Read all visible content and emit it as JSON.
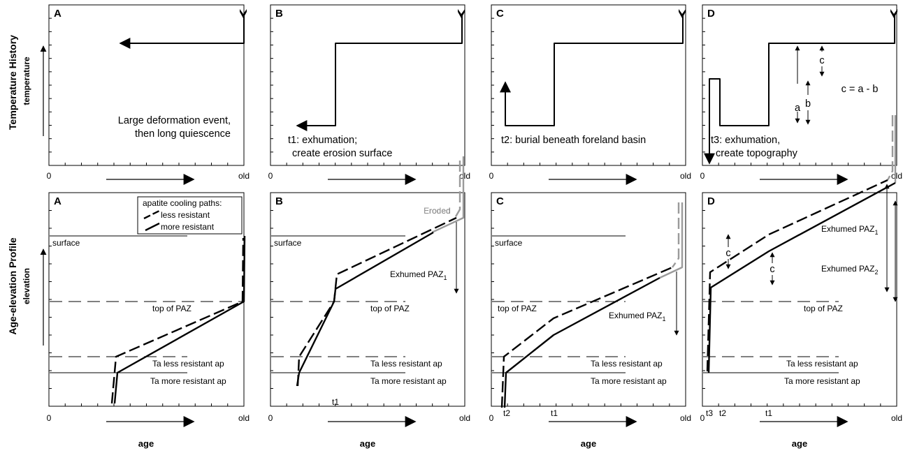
{
  "rows": {
    "top_title": "Temperature History",
    "top_sub": "temperature",
    "bottom_title": "Age-elevation Profile",
    "bottom_sub": "elevation"
  },
  "axis": {
    "zero": "0",
    "old": "old",
    "age": "age"
  },
  "panels": [
    {
      "letter": "A",
      "caption": [
        "Large deformation event,",
        "then long quiescence"
      ]
    },
    {
      "letter": "B",
      "caption": [
        "t1: exhumation;",
        "create erosion surface"
      ]
    },
    {
      "letter": "C",
      "caption": [
        "t2: burial beneath foreland basin"
      ]
    },
    {
      "letter": "D",
      "caption": [
        "t3: exhumation,",
        "create topography"
      ],
      "symbols": {
        "a": "a",
        "b": "b",
        "c": "c",
        "eq": "c = a - b"
      }
    }
  ],
  "labels": {
    "surface": "surface",
    "top_paz": "top of PAZ",
    "ta_less": "Ta less resistant ap",
    "ta_more": "Ta more resistant ap",
    "eroded": "Eroded",
    "exhumed_paz": "Exhumed PAZ",
    "sub1": "1",
    "sub2": "2",
    "t1": "t1",
    "t2": "t2",
    "t3": "t3",
    "c": "c"
  },
  "legend": {
    "title": "apatite cooling paths:",
    "less": "less resistant",
    "more": "more resistant"
  },
  "colors": {
    "ink": "#000000",
    "eroded": "#9a9a9a"
  }
}
